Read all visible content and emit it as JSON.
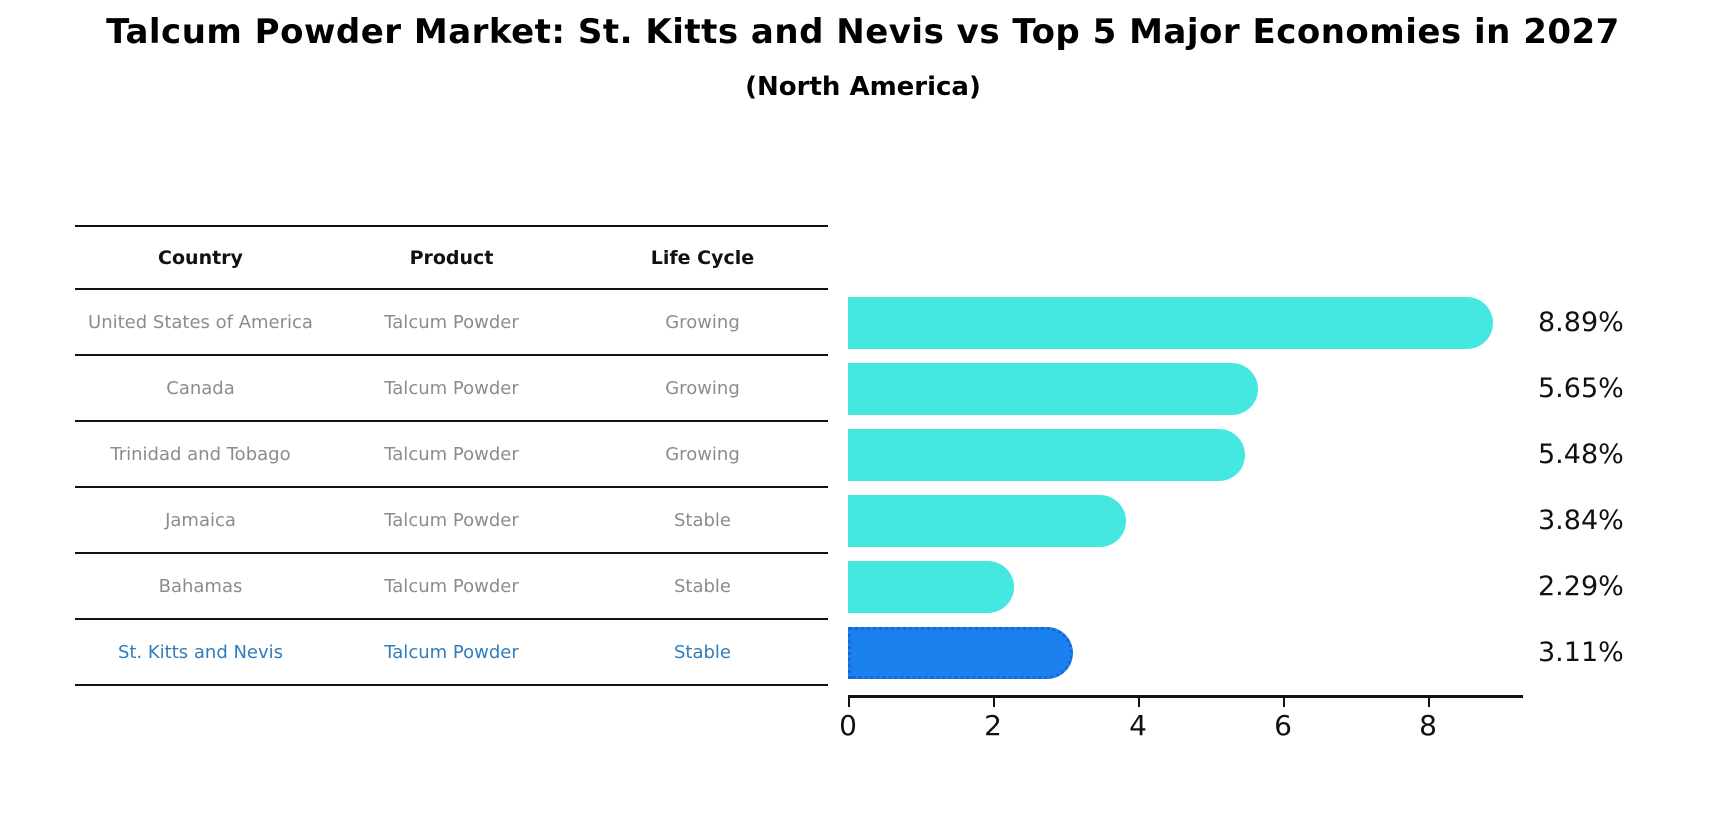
{
  "title": "Talcum Powder Market: St. Kitts and Nevis vs Top 5 Major Economies in 2027",
  "subtitle": "(North America)",
  "table": {
    "headers": [
      "Country",
      "Product",
      "Life Cycle"
    ],
    "rows": [
      {
        "country": "United States of America",
        "product": "Talcum Powder",
        "life_cycle": "Growing",
        "highlight": false
      },
      {
        "country": "Canada",
        "product": "Talcum Powder",
        "life_cycle": "Growing",
        "highlight": false
      },
      {
        "country": "Trinidad and Tobago",
        "product": "Talcum Powder",
        "life_cycle": "Growing",
        "highlight": false
      },
      {
        "country": "Jamaica",
        "product": "Talcum Powder",
        "life_cycle": "Stable",
        "highlight": false
      },
      {
        "country": "Bahamas",
        "product": "Talcum Powder",
        "life_cycle": "Stable",
        "highlight": false
      },
      {
        "country": "St. Kitts and Nevis",
        "product": "Talcum Powder",
        "life_cycle": "Stable",
        "highlight": true
      }
    ]
  },
  "chart_data": {
    "type": "bar",
    "orientation": "horizontal",
    "title": "Talcum Powder Market: St. Kitts and Nevis vs Top 5 Major Economies in 2027 (North America)",
    "categories": [
      "United States of America",
      "Canada",
      "Trinidad and Tobago",
      "Jamaica",
      "Bahamas",
      "St. Kitts and Nevis"
    ],
    "values": [
      8.89,
      5.65,
      5.48,
      3.84,
      2.29,
      3.11
    ],
    "labels": [
      "8.89%",
      "5.65%",
      "5.48%",
      "3.84%",
      "2.29%",
      "3.11%"
    ],
    "value_unit": "%",
    "xlabel": "",
    "ylabel": "",
    "xlim": [
      0,
      9.31
    ],
    "xticks": [
      0,
      2,
      4,
      6,
      8
    ],
    "grid": false,
    "legend": false,
    "highlight_index": 5,
    "bar_color": "#45e8e1",
    "highlight_color": "#1b81ee",
    "highlight_edge_color": "#1a66d9",
    "highlight_text_color": "#2e7ebf"
  }
}
